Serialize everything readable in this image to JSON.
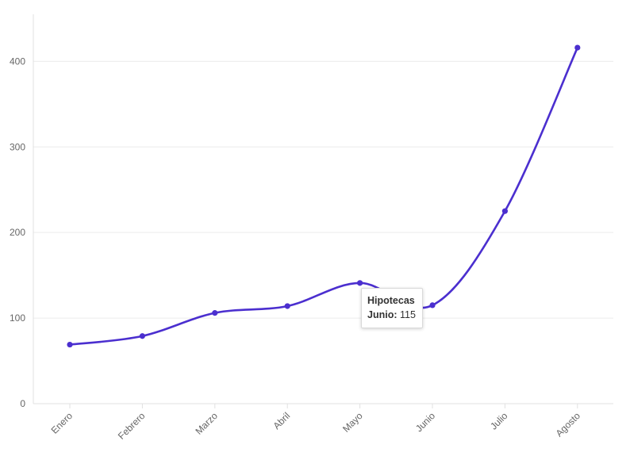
{
  "colors": {
    "series": "#4b2fcf",
    "grid": "#ececec",
    "axis": "#e0e0e0",
    "tick_text": "#666666"
  },
  "chart_data": {
    "type": "line",
    "curve": "smooth",
    "categories": [
      "Enero",
      "Febrero",
      "Marzo",
      "Abril",
      "Mayo",
      "Junio",
      "Julio",
      "Agosto"
    ],
    "series": [
      {
        "name": "Hipotecas",
        "values": [
          69,
          79,
          106,
          114,
          141,
          115,
          225,
          416
        ]
      }
    ],
    "yticks": [
      0,
      100,
      200,
      300,
      400
    ],
    "ylim": [
      0,
      455
    ],
    "grid": "horizontal",
    "legend": "none"
  },
  "tooltip": {
    "series_name": "Hipotecas",
    "category": "Junio",
    "separator": ":",
    "value": "115"
  }
}
